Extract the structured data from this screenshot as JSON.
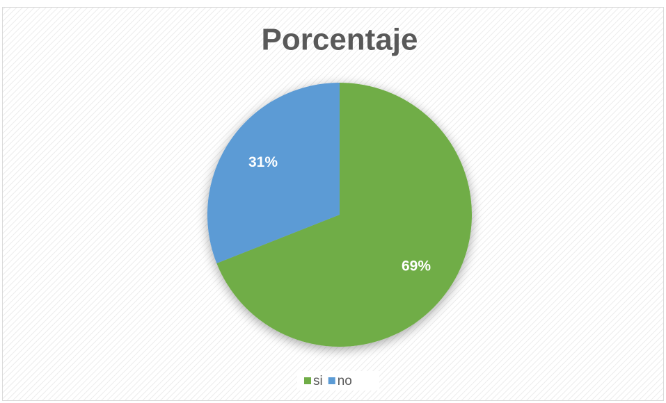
{
  "chart_data": {
    "type": "pie",
    "title": "Porcentaje",
    "categories": [
      "si",
      "no"
    ],
    "values": [
      69,
      31
    ],
    "value_labels": [
      "69%",
      "31%"
    ],
    "colors": [
      "#70ad47",
      "#5b9bd5"
    ],
    "legend": "bottom"
  }
}
